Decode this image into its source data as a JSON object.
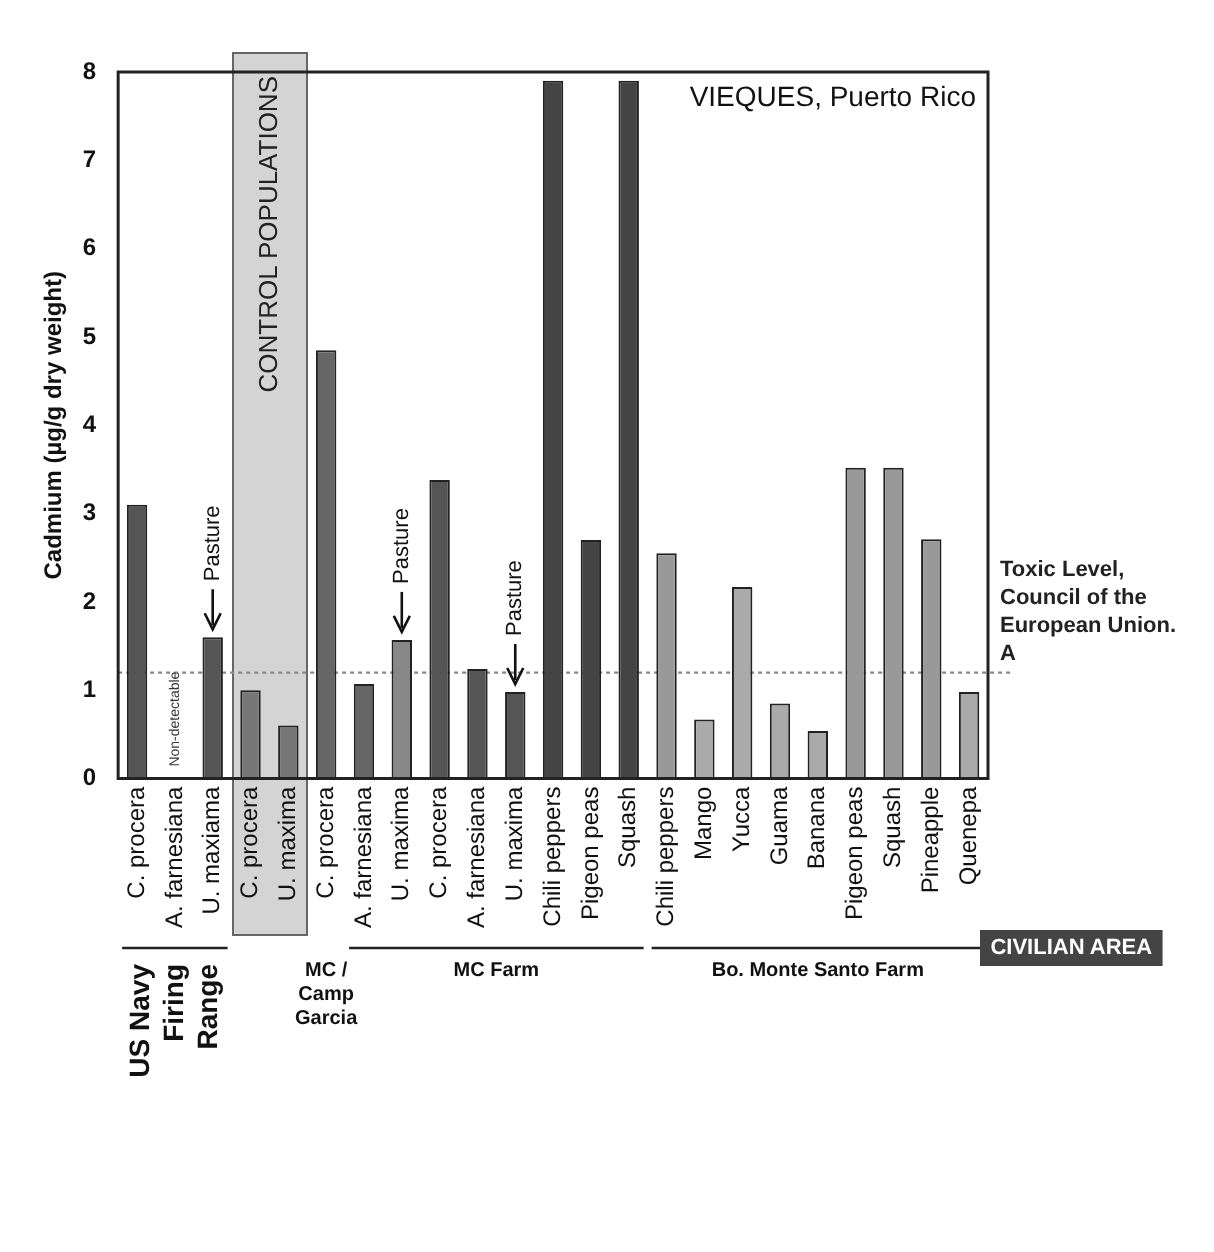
{
  "chart_data": {
    "type": "bar",
    "title": "VIEQUES, Puerto Rico",
    "ylabel": "Cadmium (µg/g dry weight)",
    "categories": [
      "C. procera",
      "A. farnesiana",
      "U. maxiama",
      "C. procera",
      "U. maxima",
      "C. procera",
      "A. farnesiana",
      "U. maxima",
      "C. procera",
      "A. farnesiana",
      "U. maxima",
      "Chili peppers",
      "Pigeon peas",
      "Squash",
      "Chili peppers",
      "Mango",
      "Yucca",
      "Guama",
      "Banana",
      "Pigeon peas",
      "Squash",
      "Pineapple",
      "Quenepa"
    ],
    "values": [
      3.1,
      null,
      1.6,
      1.0,
      0.6,
      4.85,
      1.07,
      1.57,
      3.38,
      1.24,
      0.98,
      7.9,
      2.7,
      7.9,
      2.55,
      0.67,
      2.17,
      0.85,
      0.54,
      3.52,
      3.52,
      2.71,
      0.98
    ],
    "value_labels": [
      null,
      "Non-detectable",
      null,
      null,
      null,
      null,
      null,
      null,
      null,
      null,
      null,
      null,
      null,
      null,
      null,
      null,
      null,
      null,
      null,
      null,
      null,
      null,
      null
    ],
    "colors": [
      "#555555",
      "#555555",
      "#555555",
      "#777777",
      "#777777",
      "#666666",
      "#666666",
      "#888888",
      "#555555",
      "#555555",
      "#555555",
      "#444444",
      "#444444",
      "#444444",
      "#999999",
      "#aaaaaa",
      "#aaaaaa",
      "#aaaaaa",
      "#aaaaaa",
      "#999999",
      "#999999",
      "#999999",
      "#aaaaaa"
    ],
    "ylim": [
      0,
      8
    ],
    "yticks": [
      0,
      1,
      2,
      3,
      4,
      5,
      6,
      7,
      8
    ],
    "grid": false,
    "ref_lines": [
      {
        "axis": "y",
        "value": 1.2,
        "label": "Toxic Level, Council of the European Union. A",
        "color": "#888888",
        "line_style": "dotted"
      }
    ],
    "annotations": [
      "US Navy Firing Range",
      "MC / Camp Garcia",
      "MC Farm",
      "Bo. Monte Santo Farm",
      "CIVILIAN AREA",
      "CONTROL POPULATIONS",
      "Pasture",
      "Pasture",
      "Pasture"
    ]
  }
}
